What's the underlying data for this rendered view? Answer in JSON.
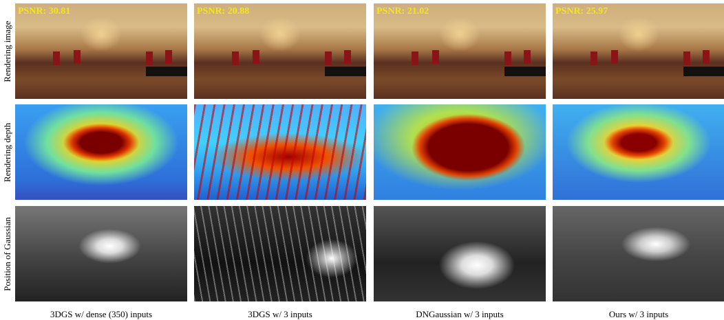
{
  "rows": [
    "Rendering image",
    "Rendering depth",
    "Position of Gaussian"
  ],
  "columns": [
    {
      "caption": "3DGS w/ dense (350) inputs",
      "psnr": "PSNR: 30.81"
    },
    {
      "caption": "3DGS w/ 3 inputs",
      "psnr": "PSNR: 20.88"
    },
    {
      "caption": "DNGaussian w/ 3 inputs",
      "psnr": "PSNR: 21.02"
    },
    {
      "caption": "Ours w/ 3 inputs",
      "psnr": "PSNR: 25.97"
    }
  ]
}
